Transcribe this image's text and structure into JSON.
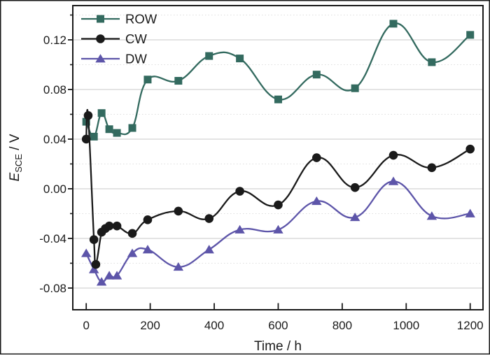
{
  "figure": {
    "background": "#ffffff",
    "border_color": "#1a1a1a"
  },
  "chart_data": {
    "type": "line",
    "title": "",
    "xlabel": "Time / h",
    "ylabel": {
      "symbol": "E",
      "subscript": "SCE",
      "suffix": " / V"
    },
    "xlim": [
      -42,
      1240
    ],
    "ylim": [
      -0.0975,
      0.1476
    ],
    "grid": {
      "major_horizontal": true,
      "minor_horizontal_dotted": true,
      "vertical": false
    },
    "x_ticks": {
      "values": [
        0,
        200,
        400,
        600,
        800,
        1000,
        1200
      ],
      "labels": [
        "0",
        "200",
        "400",
        "600",
        "800",
        "1000",
        "1200"
      ]
    },
    "y_ticks": {
      "values": [
        -0.08,
        -0.04,
        0,
        0.04,
        0.08,
        0.12
      ],
      "labels": [
        "-0.08",
        "-0.04",
        "0.00",
        "0.04",
        "0.08",
        "0.12"
      ]
    },
    "y_minor_ticks": [
      -0.06,
      -0.02,
      0.02,
      0.06,
      0.1,
      0.14
    ],
    "legend": {
      "position": "top-left",
      "items": [
        "ROW",
        "CW",
        "DW"
      ]
    },
    "colors": {
      "ROW": "#336a5f",
      "CW": "#1a1a1a",
      "DW": "#5d55a9"
    },
    "series": [
      {
        "name": "ROW",
        "marker": "square",
        "color": "#336a5f",
        "x": [
          0,
          24,
          48,
          72,
          96,
          144,
          192,
          288,
          384,
          480,
          600,
          720,
          840,
          960,
          1080,
          1200
        ],
        "y": [
          0.054,
          0.042,
          0.061,
          0.048,
          0.045,
          0.049,
          0.088,
          0.087,
          0.107,
          0.105,
          0.072,
          0.092,
          0.081,
          0.133,
          0.102,
          0.124
        ]
      },
      {
        "name": "CW",
        "marker": "circle",
        "color": "#1a1a1a",
        "x": [
          0,
          6,
          24,
          30,
          48,
          60,
          72,
          96,
          144,
          192,
          288,
          384,
          480,
          600,
          720,
          840,
          960,
          1080,
          1200
        ],
        "y": [
          0.04,
          0.059,
          -0.041,
          -0.061,
          -0.035,
          -0.032,
          -0.03,
          -0.03,
          -0.036,
          -0.025,
          -0.018,
          -0.024,
          -0.002,
          -0.013,
          0.025,
          0.001,
          0.027,
          0.017,
          0.032
        ]
      },
      {
        "name": "DW",
        "marker": "triangle",
        "color": "#5d55a9",
        "x": [
          0,
          24,
          48,
          72,
          96,
          144,
          192,
          288,
          384,
          480,
          600,
          720,
          840,
          960,
          1080,
          1200
        ],
        "y": [
          -0.052,
          -0.065,
          -0.075,
          -0.07,
          -0.07,
          -0.052,
          -0.049,
          -0.063,
          -0.049,
          -0.033,
          -0.033,
          -0.01,
          -0.023,
          0.006,
          -0.022,
          -0.02
        ]
      }
    ]
  }
}
